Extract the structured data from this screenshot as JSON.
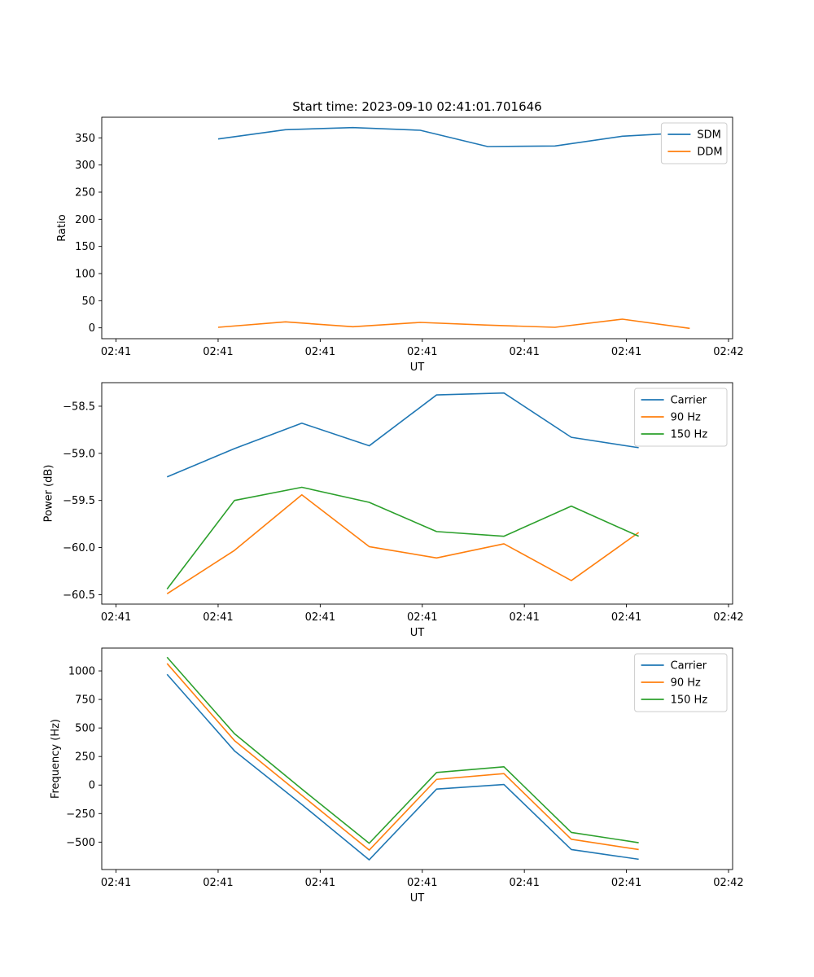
{
  "chart_data": [
    {
      "type": "line",
      "title": "Start time: 2023-09-10 02:41:01.701646",
      "xlabel": "UT",
      "ylabel": "Ratio",
      "x": [
        0.5,
        0.83,
        1.16,
        1.49,
        1.82,
        2.15,
        2.48,
        2.81
      ],
      "xlim": [
        -0.07,
        3.02
      ],
      "x_ticks": [
        0,
        0.5,
        1.0,
        1.5,
        2.0,
        2.5,
        3.0
      ],
      "x_tick_labels": [
        "02:41",
        "02:41",
        "02:41",
        "02:41",
        "02:41",
        "02:41",
        "02:42"
      ],
      "ylim": [
        -20,
        388
      ],
      "y_ticks": [
        0,
        50,
        100,
        150,
        200,
        250,
        300,
        350
      ],
      "y_tick_labels": [
        "0",
        "50",
        "100",
        "150",
        "200",
        "250",
        "300",
        "350"
      ],
      "legend": "upper right",
      "series": [
        {
          "name": "SDM",
          "color": "#1f77b4",
          "values": [
            348,
            365,
            369,
            364,
            334,
            335,
            353,
            360
          ]
        },
        {
          "name": "DDM",
          "color": "#ff7f0e",
          "values": [
            1,
            11,
            2,
            10,
            5,
            1,
            16,
            -1
          ]
        }
      ]
    },
    {
      "type": "line",
      "title": "",
      "xlabel": "UT",
      "ylabel": "Power (dB)",
      "x": [
        0.25,
        0.58,
        0.91,
        1.24,
        1.57,
        1.9,
        2.23,
        2.56
      ],
      "xlim": [
        -0.07,
        3.02
      ],
      "x_ticks": [
        0,
        0.5,
        1.0,
        1.5,
        2.0,
        2.5,
        3.0
      ],
      "x_tick_labels": [
        "02:41",
        "02:41",
        "02:41",
        "02:41",
        "02:41",
        "02:41",
        "02:42"
      ],
      "ylim": [
        -60.6,
        -58.25
      ],
      "y_ticks": [
        -60.5,
        -60.0,
        -59.5,
        -59.0,
        -58.5
      ],
      "y_tick_labels": [
        "−60.5",
        "−60.0",
        "−59.5",
        "−59.0",
        "−58.5"
      ],
      "legend": "upper right",
      "series": [
        {
          "name": "Carrier",
          "color": "#1f77b4",
          "values": [
            -59.25,
            -58.95,
            -58.68,
            -58.92,
            -58.38,
            -58.36,
            -58.83,
            -58.94
          ]
        },
        {
          "name": "90 Hz",
          "color": "#ff7f0e",
          "values": [
            -60.49,
            -60.03,
            -59.44,
            -59.99,
            -60.11,
            -59.96,
            -60.35,
            -59.84
          ]
        },
        {
          "name": "150 Hz",
          "color": "#2ca02c",
          "values": [
            -60.44,
            -59.5,
            -59.36,
            -59.52,
            -59.83,
            -59.88,
            -59.56,
            -59.88
          ]
        }
      ]
    },
    {
      "type": "line",
      "title": "",
      "xlabel": "UT",
      "ylabel": "Frequency (Hz)",
      "x": [
        0.25,
        0.58,
        0.91,
        1.24,
        1.57,
        1.9,
        2.23,
        2.56
      ],
      "xlim": [
        -0.07,
        3.02
      ],
      "x_ticks": [
        0,
        0.5,
        1.0,
        1.5,
        2.0,
        2.5,
        3.0
      ],
      "x_tick_labels": [
        "02:41",
        "02:41",
        "02:41",
        "02:41",
        "02:41",
        "02:41",
        "02:42"
      ],
      "ylim": [
        -740,
        1200
      ],
      "y_ticks": [
        -500,
        -250,
        0,
        250,
        500,
        750,
        1000
      ],
      "y_tick_labels": [
        "−500",
        "−250",
        "0",
        "250",
        "500",
        "750",
        "1000"
      ],
      "legend": "upper right",
      "series": [
        {
          "name": "Carrier",
          "color": "#1f77b4",
          "values": [
            970,
            300,
            -170,
            -655,
            -35,
            5,
            -565,
            -650
          ]
        },
        {
          "name": "90 Hz",
          "color": "#ff7f0e",
          "values": [
            1065,
            390,
            -90,
            -570,
            50,
            100,
            -475,
            -565
          ]
        },
        {
          "name": "150 Hz",
          "color": "#2ca02c",
          "values": [
            1120,
            450,
            -35,
            -510,
            110,
            160,
            -415,
            -505
          ]
        }
      ]
    }
  ]
}
